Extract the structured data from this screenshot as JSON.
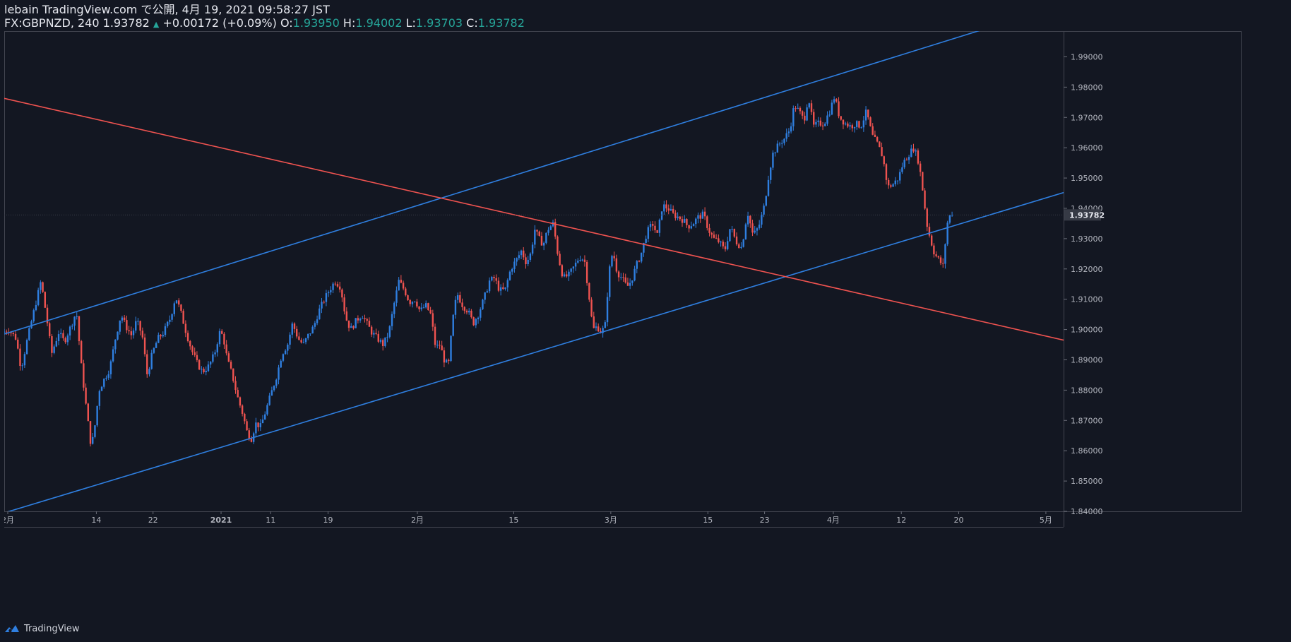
{
  "header": {
    "line1": "lebain TradingView.com で公開, 4月 19, 2021 09:58:27 JST",
    "symbol": "FX:GBPNZD, 240",
    "last": "1.93782",
    "change": "+0.00172 (+0.09%)",
    "o_label": "O:",
    "o_value": "1.93950",
    "h_label": "H:",
    "h_value": "1.94002",
    "l_label": "L:",
    "l_value": "1.93703",
    "c_label": "C:",
    "c_value": "1.93782"
  },
  "footer": {
    "brand": "TradingView"
  },
  "colors": {
    "background": "#131722",
    "bull": "#2f7fe0",
    "bear": "#ef5350",
    "blue_line": "#2f7fe0",
    "red_line": "#ef5350",
    "axis_text": "#b2b5be",
    "last_price_tag": "#363a45"
  },
  "chart_data": {
    "type": "candlestick",
    "title": "FX:GBPNZD, 240",
    "ylim": [
      1.84,
      1.9985
    ],
    "xlim": [
      0,
      1495
    ],
    "y_ticks": [
      "1.99000",
      "1.98000",
      "1.97000",
      "1.96000",
      "1.95000",
      "1.94000",
      "1.93000",
      "1.92000",
      "1.91000",
      "1.90000",
      "1.89000",
      "1.88000",
      "1.87000",
      "1.86000",
      "1.85000",
      "1.84000"
    ],
    "y_tick_values": [
      1.99,
      1.98,
      1.97,
      1.96,
      1.95,
      1.94,
      1.93,
      1.92,
      1.91,
      1.9,
      1.89,
      1.88,
      1.87,
      1.86,
      1.85,
      1.84
    ],
    "x_ticks": [
      {
        "label": "2月",
        "x": 5
      },
      {
        "label": "14",
        "x": 130
      },
      {
        "label": "22",
        "x": 210
      },
      {
        "label": "2021",
        "x": 306,
        "bold": true
      },
      {
        "label": "11",
        "x": 376
      },
      {
        "label": "19",
        "x": 457
      },
      {
        "label": "2月",
        "x": 583
      },
      {
        "label": "15",
        "x": 719
      },
      {
        "label": "3月",
        "x": 856
      },
      {
        "label": "15",
        "x": 993
      },
      {
        "label": "23",
        "x": 1073
      },
      {
        "label": "4月",
        "x": 1170
      },
      {
        "label": "12",
        "x": 1266
      },
      {
        "label": "20",
        "x": 1347
      },
      {
        "label": "5月",
        "x": 1470
      }
    ],
    "last_price": 1.93782,
    "last_price_label": "1.93782",
    "price_path": [
      [
        0,
        1.899
      ],
      [
        10,
        1.9
      ],
      [
        20,
        1.897
      ],
      [
        27,
        1.887
      ],
      [
        35,
        1.896
      ],
      [
        45,
        1.906
      ],
      [
        55,
        1.916
      ],
      [
        63,
        1.904
      ],
      [
        70,
        1.892
      ],
      [
        80,
        1.899
      ],
      [
        88,
        1.896
      ],
      [
        97,
        1.901
      ],
      [
        105,
        1.906
      ],
      [
        112,
        1.888
      ],
      [
        120,
        1.872
      ],
      [
        126,
        1.861
      ],
      [
        131,
        1.868
      ],
      [
        137,
        1.88
      ],
      [
        145,
        1.884
      ],
      [
        152,
        1.887
      ],
      [
        160,
        1.897
      ],
      [
        168,
        1.905
      ],
      [
        175,
        1.901
      ],
      [
        183,
        1.898
      ],
      [
        190,
        1.903
      ],
      [
        198,
        1.898
      ],
      [
        205,
        1.885
      ],
      [
        212,
        1.892
      ],
      [
        220,
        1.897
      ],
      [
        228,
        1.899
      ],
      [
        238,
        1.904
      ],
      [
        245,
        1.911
      ],
      [
        252,
        1.906
      ],
      [
        260,
        1.899
      ],
      [
        268,
        1.893
      ],
      [
        275,
        1.889
      ],
      [
        283,
        1.886
      ],
      [
        292,
        1.888
      ],
      [
        300,
        1.892
      ],
      [
        307,
        1.899
      ],
      [
        312,
        1.898
      ],
      [
        318,
        1.89
      ],
      [
        325,
        1.885
      ],
      [
        332,
        1.878
      ],
      [
        340,
        1.872
      ],
      [
        346,
        1.866
      ],
      [
        352,
        1.864
      ],
      [
        358,
        1.869
      ],
      [
        365,
        1.868
      ],
      [
        372,
        1.873
      ],
      [
        380,
        1.879
      ],
      [
        388,
        1.885
      ],
      [
        395,
        1.892
      ],
      [
        403,
        1.895
      ],
      [
        410,
        1.902
      ],
      [
        418,
        1.897
      ],
      [
        425,
        1.895
      ],
      [
        432,
        1.898
      ],
      [
        440,
        1.901
      ],
      [
        447,
        1.906
      ],
      [
        455,
        1.91
      ],
      [
        462,
        1.913
      ],
      [
        470,
        1.916
      ],
      [
        478,
        1.914
      ],
      [
        485,
        1.904
      ],
      [
        492,
        1.9
      ],
      [
        500,
        1.903
      ],
      [
        508,
        1.905
      ],
      [
        515,
        1.902
      ],
      [
        522,
        1.899
      ],
      [
        530,
        1.897
      ],
      [
        538,
        1.895
      ],
      [
        546,
        1.899
      ],
      [
        553,
        1.908
      ],
      [
        560,
        1.916
      ],
      [
        568,
        1.913
      ],
      [
        575,
        1.909
      ],
      [
        583,
        1.91
      ],
      [
        590,
        1.906
      ],
      [
        598,
        1.908
      ],
      [
        605,
        1.905
      ],
      [
        612,
        1.894
      ],
      [
        618,
        1.895
      ],
      [
        624,
        1.89
      ],
      [
        630,
        1.888
      ],
      [
        636,
        1.903
      ],
      [
        642,
        1.912
      ],
      [
        650,
        1.908
      ],
      [
        658,
        1.906
      ],
      [
        665,
        1.902
      ],
      [
        672,
        1.905
      ],
      [
        680,
        1.91
      ],
      [
        688,
        1.916
      ],
      [
        695,
        1.917
      ],
      [
        702,
        1.913
      ],
      [
        710,
        1.913
      ],
      [
        718,
        1.92
      ],
      [
        726,
        1.923
      ],
      [
        733,
        1.926
      ],
      [
        740,
        1.922
      ],
      [
        746,
        1.925
      ],
      [
        752,
        1.933
      ],
      [
        758,
        1.93
      ],
      [
        764,
        1.928
      ],
      [
        770,
        1.933
      ],
      [
        778,
        1.935
      ],
      [
        785,
        1.924
      ],
      [
        792,
        1.917
      ],
      [
        800,
        1.918
      ],
      [
        808,
        1.921
      ],
      [
        815,
        1.924
      ],
      [
        822,
        1.923
      ],
      [
        828,
        1.912
      ],
      [
        834,
        1.9
      ],
      [
        840,
        1.901
      ],
      [
        846,
        1.899
      ],
      [
        852,
        1.902
      ],
      [
        856,
        1.918
      ],
      [
        862,
        1.926
      ],
      [
        868,
        1.919
      ],
      [
        875,
        1.917
      ],
      [
        882,
        1.914
      ],
      [
        888,
        1.916
      ],
      [
        895,
        1.921
      ],
      [
        902,
        1.925
      ],
      [
        910,
        1.932
      ],
      [
        918,
        1.935
      ],
      [
        925,
        1.931
      ],
      [
        932,
        1.941
      ],
      [
        940,
        1.94
      ],
      [
        947,
        1.938
      ],
      [
        955,
        1.937
      ],
      [
        962,
        1.936
      ],
      [
        968,
        1.934
      ],
      [
        975,
        1.935
      ],
      [
        982,
        1.937
      ],
      [
        990,
        1.938
      ],
      [
        997,
        1.933
      ],
      [
        1004,
        1.93
      ],
      [
        1012,
        1.929
      ],
      [
        1020,
        1.926
      ],
      [
        1028,
        1.934
      ],
      [
        1036,
        1.929
      ],
      [
        1044,
        1.927
      ],
      [
        1052,
        1.939
      ],
      [
        1060,
        1.931
      ],
      [
        1068,
        1.934
      ],
      [
        1076,
        1.941
      ],
      [
        1082,
        1.951
      ],
      [
        1088,
        1.958
      ],
      [
        1096,
        1.961
      ],
      [
        1104,
        1.963
      ],
      [
        1112,
        1.966
      ],
      [
        1118,
        1.974
      ],
      [
        1125,
        1.972
      ],
      [
        1132,
        1.969
      ],
      [
        1138,
        1.977
      ],
      [
        1145,
        1.967
      ],
      [
        1152,
        1.968
      ],
      [
        1160,
        1.968
      ],
      [
        1168,
        1.972
      ],
      [
        1175,
        1.977
      ],
      [
        1182,
        1.97
      ],
      [
        1190,
        1.968
      ],
      [
        1198,
        1.967
      ],
      [
        1205,
        1.968
      ],
      [
        1212,
        1.967
      ],
      [
        1220,
        1.972
      ],
      [
        1228,
        1.964
      ],
      [
        1236,
        1.961
      ],
      [
        1243,
        1.957
      ],
      [
        1250,
        1.947
      ],
      [
        1258,
        1.948
      ],
      [
        1265,
        1.95
      ],
      [
        1272,
        1.955
      ],
      [
        1280,
        1.958
      ],
      [
        1287,
        1.96
      ],
      [
        1294,
        1.955
      ],
      [
        1300,
        1.945
      ],
      [
        1305,
        1.935
      ],
      [
        1310,
        1.93
      ],
      [
        1316,
        1.925
      ],
      [
        1322,
        1.923
      ],
      [
        1328,
        1.921
      ],
      [
        1334,
        1.935
      ],
      [
        1338,
        1.9378
      ]
    ],
    "trend_lines": [
      {
        "name": "upper-channel",
        "color": "blue",
        "points": [
          [
            0,
            1.8985
          ],
          [
            1495,
            2.0073
          ]
        ]
      },
      {
        "name": "lower-channel",
        "color": "blue",
        "points": [
          [
            0,
            1.8395
          ],
          [
            1495,
            1.9452
          ]
        ]
      },
      {
        "name": "descending-resistance",
        "color": "red",
        "points": [
          [
            0,
            1.9763
          ],
          [
            1495,
            1.8965
          ]
        ]
      }
    ]
  }
}
